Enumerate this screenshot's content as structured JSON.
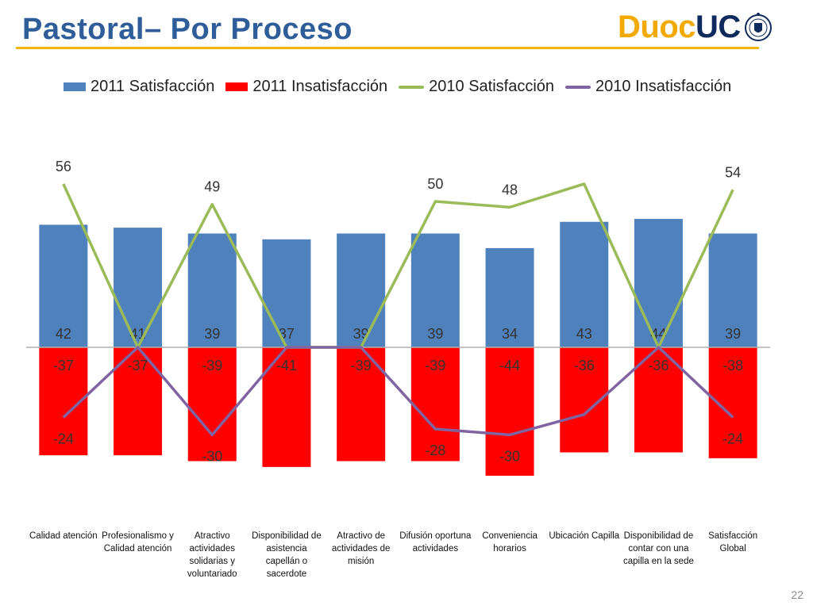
{
  "header": {
    "title": "Pastoral– Por Proceso",
    "logo_text_1": "Duoc",
    "logo_text_2": "UC"
  },
  "colors": {
    "title": "#2E5D9A",
    "accent_rule": "#F2B705",
    "logo_yellow": "#F2A900",
    "logo_navy": "#0F2A5C"
  },
  "page_number": "22",
  "chart_data": {
    "type": "bar",
    "categories": [
      "Calidad atención",
      "Profesionalismo y Calidad atención",
      "Atractivo actividades solidarias y voluntariado",
      "Disponibilidad de asistencia capellán o sacerdote",
      "Atractivo de actividades de misión",
      "Difusión oportuna actividades",
      "Conveniencia horarios",
      "Ubicación Capilla",
      "Disponibilidad de contar con una capilla en la sede",
      "Satisfacción Global"
    ],
    "series": [
      {
        "name": "2011 Satisfacción",
        "kind": "bar",
        "color": "#4F81BD",
        "values": [
          42,
          41,
          39,
          37,
          39,
          39,
          34,
          43,
          44,
          39
        ]
      },
      {
        "name": "2011 Insatisfacción",
        "kind": "bar",
        "color": "#FF0000",
        "values": [
          -37,
          -37,
          -39,
          -41,
          -39,
          -39,
          -44,
          -36,
          -36,
          -38
        ]
      },
      {
        "name": "2010 Satisfacción",
        "kind": "line",
        "color": "#9BBB59",
        "values": [
          56,
          0,
          49,
          0,
          0,
          50,
          48,
          56,
          0,
          54
        ],
        "labels": [
          "56",
          null,
          "49",
          null,
          null,
          "50",
          "48",
          null,
          null,
          "54"
        ]
      },
      {
        "name": "2010 Insatisfacción",
        "kind": "line",
        "color": "#8064A2",
        "values": [
          -24,
          0,
          -30,
          0,
          0,
          -28,
          -30,
          -23,
          0,
          -24
        ],
        "labels": [
          "-24",
          null,
          "-30",
          null,
          null,
          "-28",
          "-30",
          null,
          null,
          "-24"
        ]
      }
    ],
    "ylim": [
      -55,
      70
    ],
    "legend": "top",
    "grid": false
  }
}
